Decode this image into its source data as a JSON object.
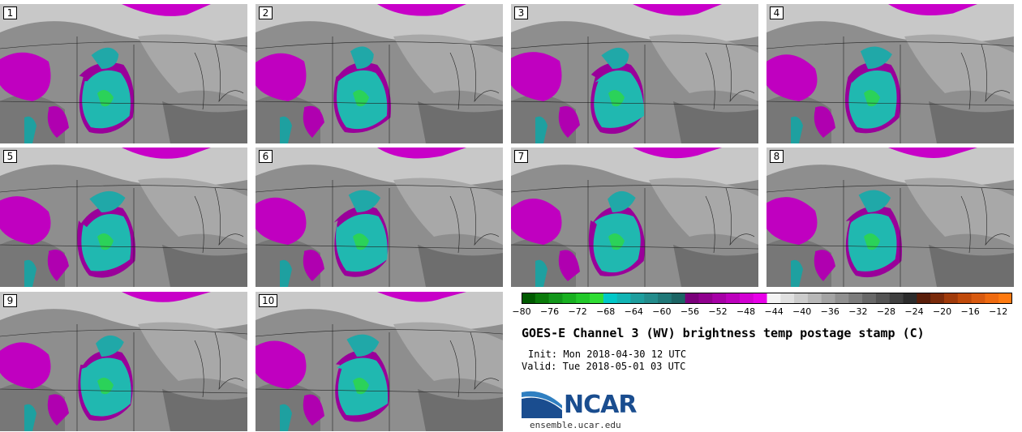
{
  "panels": [
    {
      "label": "1"
    },
    {
      "label": "2"
    },
    {
      "label": "3"
    },
    {
      "label": "4"
    },
    {
      "label": "5"
    },
    {
      "label": "6"
    },
    {
      "label": "7"
    },
    {
      "label": "8"
    },
    {
      "label": "9"
    },
    {
      "label": "10"
    }
  ],
  "colorbar": {
    "ticks": [
      "−80",
      "−76",
      "−72",
      "−68",
      "−64",
      "−60",
      "−56",
      "−52",
      "−48",
      "−44",
      "−40",
      "−36",
      "−32",
      "−28",
      "−24",
      "−20",
      "−16",
      "−12"
    ],
    "min": -80,
    "max": -10,
    "colors": [
      "#005a00",
      "#0a7a0a",
      "#12961a",
      "#18b020",
      "#22c82a",
      "#30dd34",
      "#00c8c8",
      "#12b4b4",
      "#1e9e9e",
      "#238c8c",
      "#207878",
      "#1c6464",
      "#7a007a",
      "#90008e",
      "#a600a6",
      "#bc00bc",
      "#d200d2",
      "#e800e8",
      "#f4f4f4",
      "#e0e0e0",
      "#cccccc",
      "#b8b8b8",
      "#a4a4a4",
      "#909090",
      "#7c7c7c",
      "#686868",
      "#545454",
      "#404040",
      "#2c2c2c",
      "#5a1e0a",
      "#7a2a0a",
      "#a03a0a",
      "#c04a0a",
      "#d85a10",
      "#ee6a10",
      "#ff7a10"
    ]
  },
  "title": "GOES-E Channel 3 (WV) brightness temp postage stamp (C)",
  "init": "Init: Mon 2018-04-30 12 UTC",
  "valid": "Valid: Tue 2018-05-01 03 UTC",
  "logo": {
    "text": "NCAR",
    "url": "ensemble.ucar.edu"
  },
  "colors": {
    "storm": "#20b8b0",
    "moist": "#c800c8",
    "background": "#8c8c8c"
  }
}
